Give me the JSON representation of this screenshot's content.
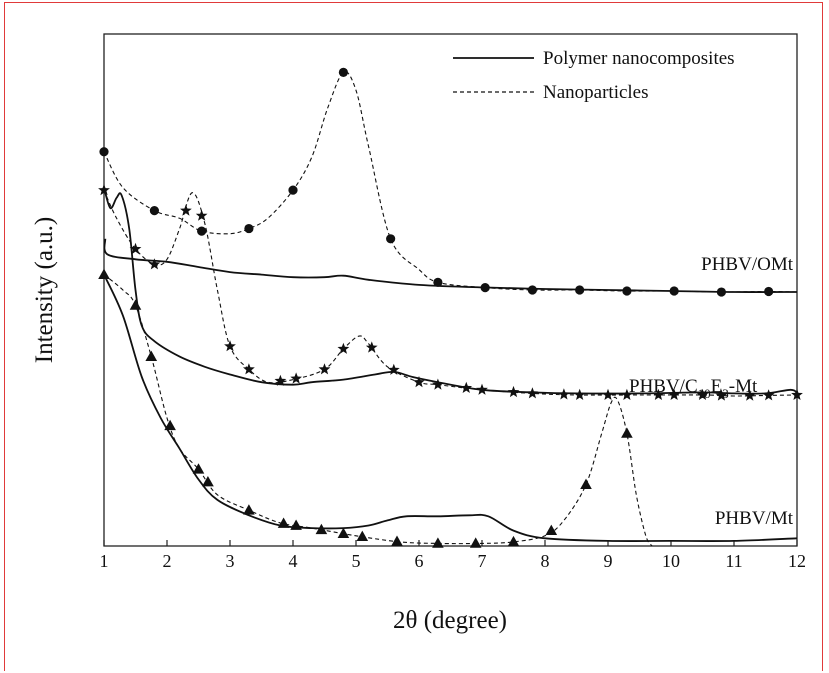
{
  "chart_data": {
    "type": "line",
    "title": "",
    "xlabel": "2θ (degree)",
    "ylabel": "Intensity (a.u.)",
    "xlim": [
      1,
      12
    ],
    "xticks": [
      "1",
      "2",
      "3",
      "4",
      "5",
      "6",
      "7",
      "8",
      "9",
      "10",
      "11",
      "12"
    ],
    "y_units": "arbitrary (a.u.), stacked traces",
    "ylim": [
      0,
      100
    ],
    "grid": false,
    "legend": {
      "placement": "top-right",
      "entries": [
        {
          "name": "Polymer nanocomposites",
          "style": "solid"
        },
        {
          "name": "Nanoparticles",
          "style": "dashed"
        }
      ]
    },
    "groups": [
      {
        "label": "PHBV/OMt",
        "marker": "circle",
        "series": [
          {
            "style": "solid",
            "markers": false,
            "points": [
              [
                1.02,
                60
              ],
              [
                1.05,
                57
              ],
              [
                1.5,
                56
              ],
              [
                2.0,
                55.5
              ],
              [
                2.5,
                54.5
              ],
              [
                3.0,
                53.5
              ],
              [
                3.5,
                53
              ],
              [
                4.0,
                52.5
              ],
              [
                4.5,
                52.5
              ],
              [
                4.8,
                52.8
              ],
              [
                5.2,
                52
              ],
              [
                6.0,
                51
              ],
              [
                7.0,
                50.5
              ],
              [
                8.0,
                50.2
              ],
              [
                9.0,
                50
              ],
              [
                10.0,
                49.8
              ],
              [
                11.0,
                49.6
              ],
              [
                12.0,
                49.6
              ]
            ]
          },
          {
            "style": "dashed",
            "markers": true,
            "points": [
              [
                1.0,
                77
              ],
              [
                1.3,
                70
              ],
              [
                1.8,
                65.5
              ],
              [
                2.2,
                64
              ],
              [
                2.55,
                61.5
              ],
              [
                3.0,
                61
              ],
              [
                3.3,
                62
              ],
              [
                3.6,
                64
              ],
              [
                4.0,
                69.5
              ],
              [
                4.3,
                76
              ],
              [
                4.55,
                85.5
              ],
              [
                4.8,
                92.5
              ],
              [
                5.0,
                89
              ],
              [
                5.2,
                78
              ],
              [
                5.55,
                60
              ],
              [
                6.0,
                54
              ],
              [
                6.3,
                51.5
              ],
              [
                7.0,
                50.5
              ],
              [
                7.8,
                50
              ],
              [
                8.55,
                50
              ],
              [
                9.3,
                49.8
              ],
              [
                10.05,
                49.8
              ],
              [
                10.8,
                49.6
              ],
              [
                11.55,
                49.7
              ],
              [
                12.0,
                49.6
              ]
            ],
            "marker_x": [
              1.0,
              1.8,
              2.55,
              3.3,
              4.0,
              4.8,
              5.55,
              6.3,
              7.05,
              7.8,
              8.55,
              9.3,
              10.05,
              10.8,
              11.55
            ]
          }
        ]
      },
      {
        "label": "PHBV/C10E3-Mt",
        "marker": "star",
        "series": [
          {
            "style": "solid",
            "markers": false,
            "points": [
              [
                1.0,
                70
              ],
              [
                1.1,
                66
              ],
              [
                1.2,
                68
              ],
              [
                1.28,
                68.5
              ],
              [
                1.4,
                62
              ],
              [
                1.5,
                50
              ],
              [
                1.6,
                43
              ],
              [
                1.8,
                40
              ],
              [
                2.2,
                37
              ],
              [
                2.6,
                35
              ],
              [
                3.0,
                33.5
              ],
              [
                3.5,
                32
              ],
              [
                4.0,
                31.5
              ],
              [
                4.3,
                32
              ],
              [
                4.8,
                32.5
              ],
              [
                5.3,
                33.5
              ],
              [
                5.6,
                34
              ],
              [
                5.9,
                33
              ],
              [
                6.3,
                32
              ],
              [
                7.0,
                30.5
              ],
              [
                7.8,
                30
              ],
              [
                8.5,
                29.8
              ],
              [
                9.5,
                29.8
              ],
              [
                10.5,
                30
              ],
              [
                11.0,
                29.8
              ],
              [
                11.5,
                29.8
              ],
              [
                11.9,
                30.5
              ],
              [
                12.0,
                29.8
              ]
            ]
          },
          {
            "style": "dashed",
            "markers": true,
            "points": [
              [
                1.0,
                69.5
              ],
              [
                1.2,
                64
              ],
              [
                1.5,
                58
              ],
              [
                1.8,
                55
              ],
              [
                2.0,
                56
              ],
              [
                2.2,
                62
              ],
              [
                2.4,
                69
              ],
              [
                2.6,
                63
              ],
              [
                2.8,
                50
              ],
              [
                3.0,
                39
              ],
              [
                3.3,
                34.5
              ],
              [
                3.6,
                32
              ],
              [
                4.0,
                32.5
              ],
              [
                4.5,
                34.5
              ],
              [
                4.8,
                38.5
              ],
              [
                5.05,
                41
              ],
              [
                5.2,
                39.5
              ],
              [
                5.5,
                35
              ],
              [
                6.0,
                32
              ],
              [
                6.3,
                31.5
              ],
              [
                7.0,
                30.5
              ],
              [
                7.8,
                29.8
              ],
              [
                8.5,
                29.5
              ],
              [
                9.5,
                29.5
              ],
              [
                10.5,
                29.5
              ],
              [
                11.0,
                29.3
              ],
              [
                11.5,
                29.4
              ],
              [
                12.0,
                29.5
              ]
            ],
            "marker_x": [
              1.0,
              1.5,
              1.8,
              2.3,
              2.55,
              3.0,
              3.3,
              3.8,
              4.05,
              4.5,
              4.8,
              5.25,
              5.6,
              6.0,
              6.3,
              6.75,
              7.0,
              7.5,
              7.8,
              8.3,
              8.55,
              9.0,
              9.3,
              9.8,
              10.05,
              10.5,
              10.8,
              11.25,
              11.55,
              12.0
            ]
          }
        ]
      },
      {
        "label": "PHBV/Mt",
        "marker": "triangle",
        "series": [
          {
            "style": "solid",
            "markers": false,
            "points": [
              [
                1.0,
                53
              ],
              [
                1.3,
                45
              ],
              [
                1.6,
                33
              ],
              [
                1.9,
                25
              ],
              [
                2.2,
                19
              ],
              [
                2.5,
                13
              ],
              [
                2.8,
                9
              ],
              [
                3.3,
                6
              ],
              [
                3.8,
                4
              ],
              [
                4.3,
                3.5
              ],
              [
                4.8,
                3.5
              ],
              [
                5.2,
                4
              ],
              [
                5.5,
                5
              ],
              [
                5.8,
                5.8
              ],
              [
                6.3,
                5.8
              ],
              [
                6.8,
                6
              ],
              [
                7.1,
                5.8
              ],
              [
                7.5,
                3
              ],
              [
                8.0,
                1.5
              ],
              [
                9.0,
                1
              ],
              [
                10.0,
                1
              ],
              [
                11.0,
                1
              ],
              [
                12.0,
                1.5
              ]
            ]
          },
          {
            "style": "dashed",
            "markers": true,
            "points": [
              [
                1.0,
                53
              ],
              [
                1.3,
                50
              ],
              [
                1.5,
                47
              ],
              [
                1.75,
                37
              ],
              [
                2.0,
                25
              ],
              [
                2.2,
                19
              ],
              [
                2.5,
                15
              ],
              [
                2.8,
                10
              ],
              [
                3.3,
                7
              ],
              [
                3.8,
                4.5
              ],
              [
                4.3,
                3.5
              ],
              [
                5.0,
                2
              ],
              [
                5.7,
                0.8
              ],
              [
                6.3,
                0.5
              ],
              [
                7.0,
                0.5
              ],
              [
                7.5,
                0.8
              ],
              [
                8.0,
                2
              ],
              [
                8.3,
                5
              ],
              [
                8.65,
                12
              ],
              [
                8.9,
                22
              ],
              [
                9.05,
                28
              ],
              [
                9.15,
                28.5
              ],
              [
                9.3,
                22
              ],
              [
                9.45,
                10
              ],
              [
                9.6,
                2
              ],
              [
                9.7,
                0
              ]
            ],
            "marker_x": [
              1.0,
              1.5,
              1.75,
              2.05,
              2.5,
              2.65,
              3.3,
              3.85,
              4.05,
              4.45,
              4.8,
              5.1,
              5.65,
              6.3,
              6.9,
              7.5,
              8.1,
              8.65,
              9.3
            ]
          }
        ]
      }
    ]
  }
}
